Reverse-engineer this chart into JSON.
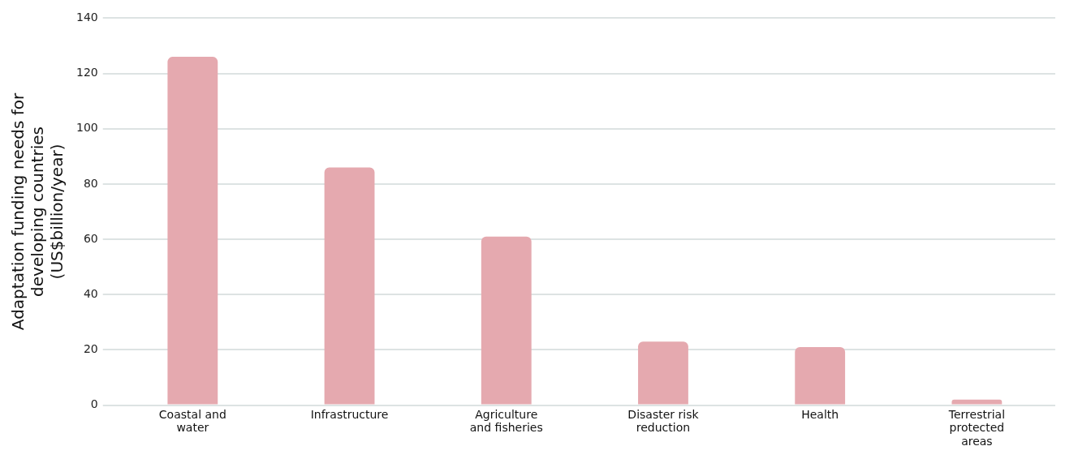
{
  "chart_data": {
    "type": "bar",
    "ylabel": "Adaptation funding needs for developing countries (US$billion/year)",
    "categories": [
      "Coastal and water",
      "Infrastructure",
      "Agriculture and fisheries",
      "Disaster risk reduction",
      "Health",
      "Terrestrial protected areas"
    ],
    "values": [
      126,
      86,
      61,
      23,
      21,
      2
    ],
    "color": "#e5a9af",
    "ylim": [
      0,
      140
    ],
    "yticks": [
      0,
      20,
      40,
      60,
      80,
      100,
      120,
      140
    ],
    "grid": "y",
    "legend": false
  }
}
